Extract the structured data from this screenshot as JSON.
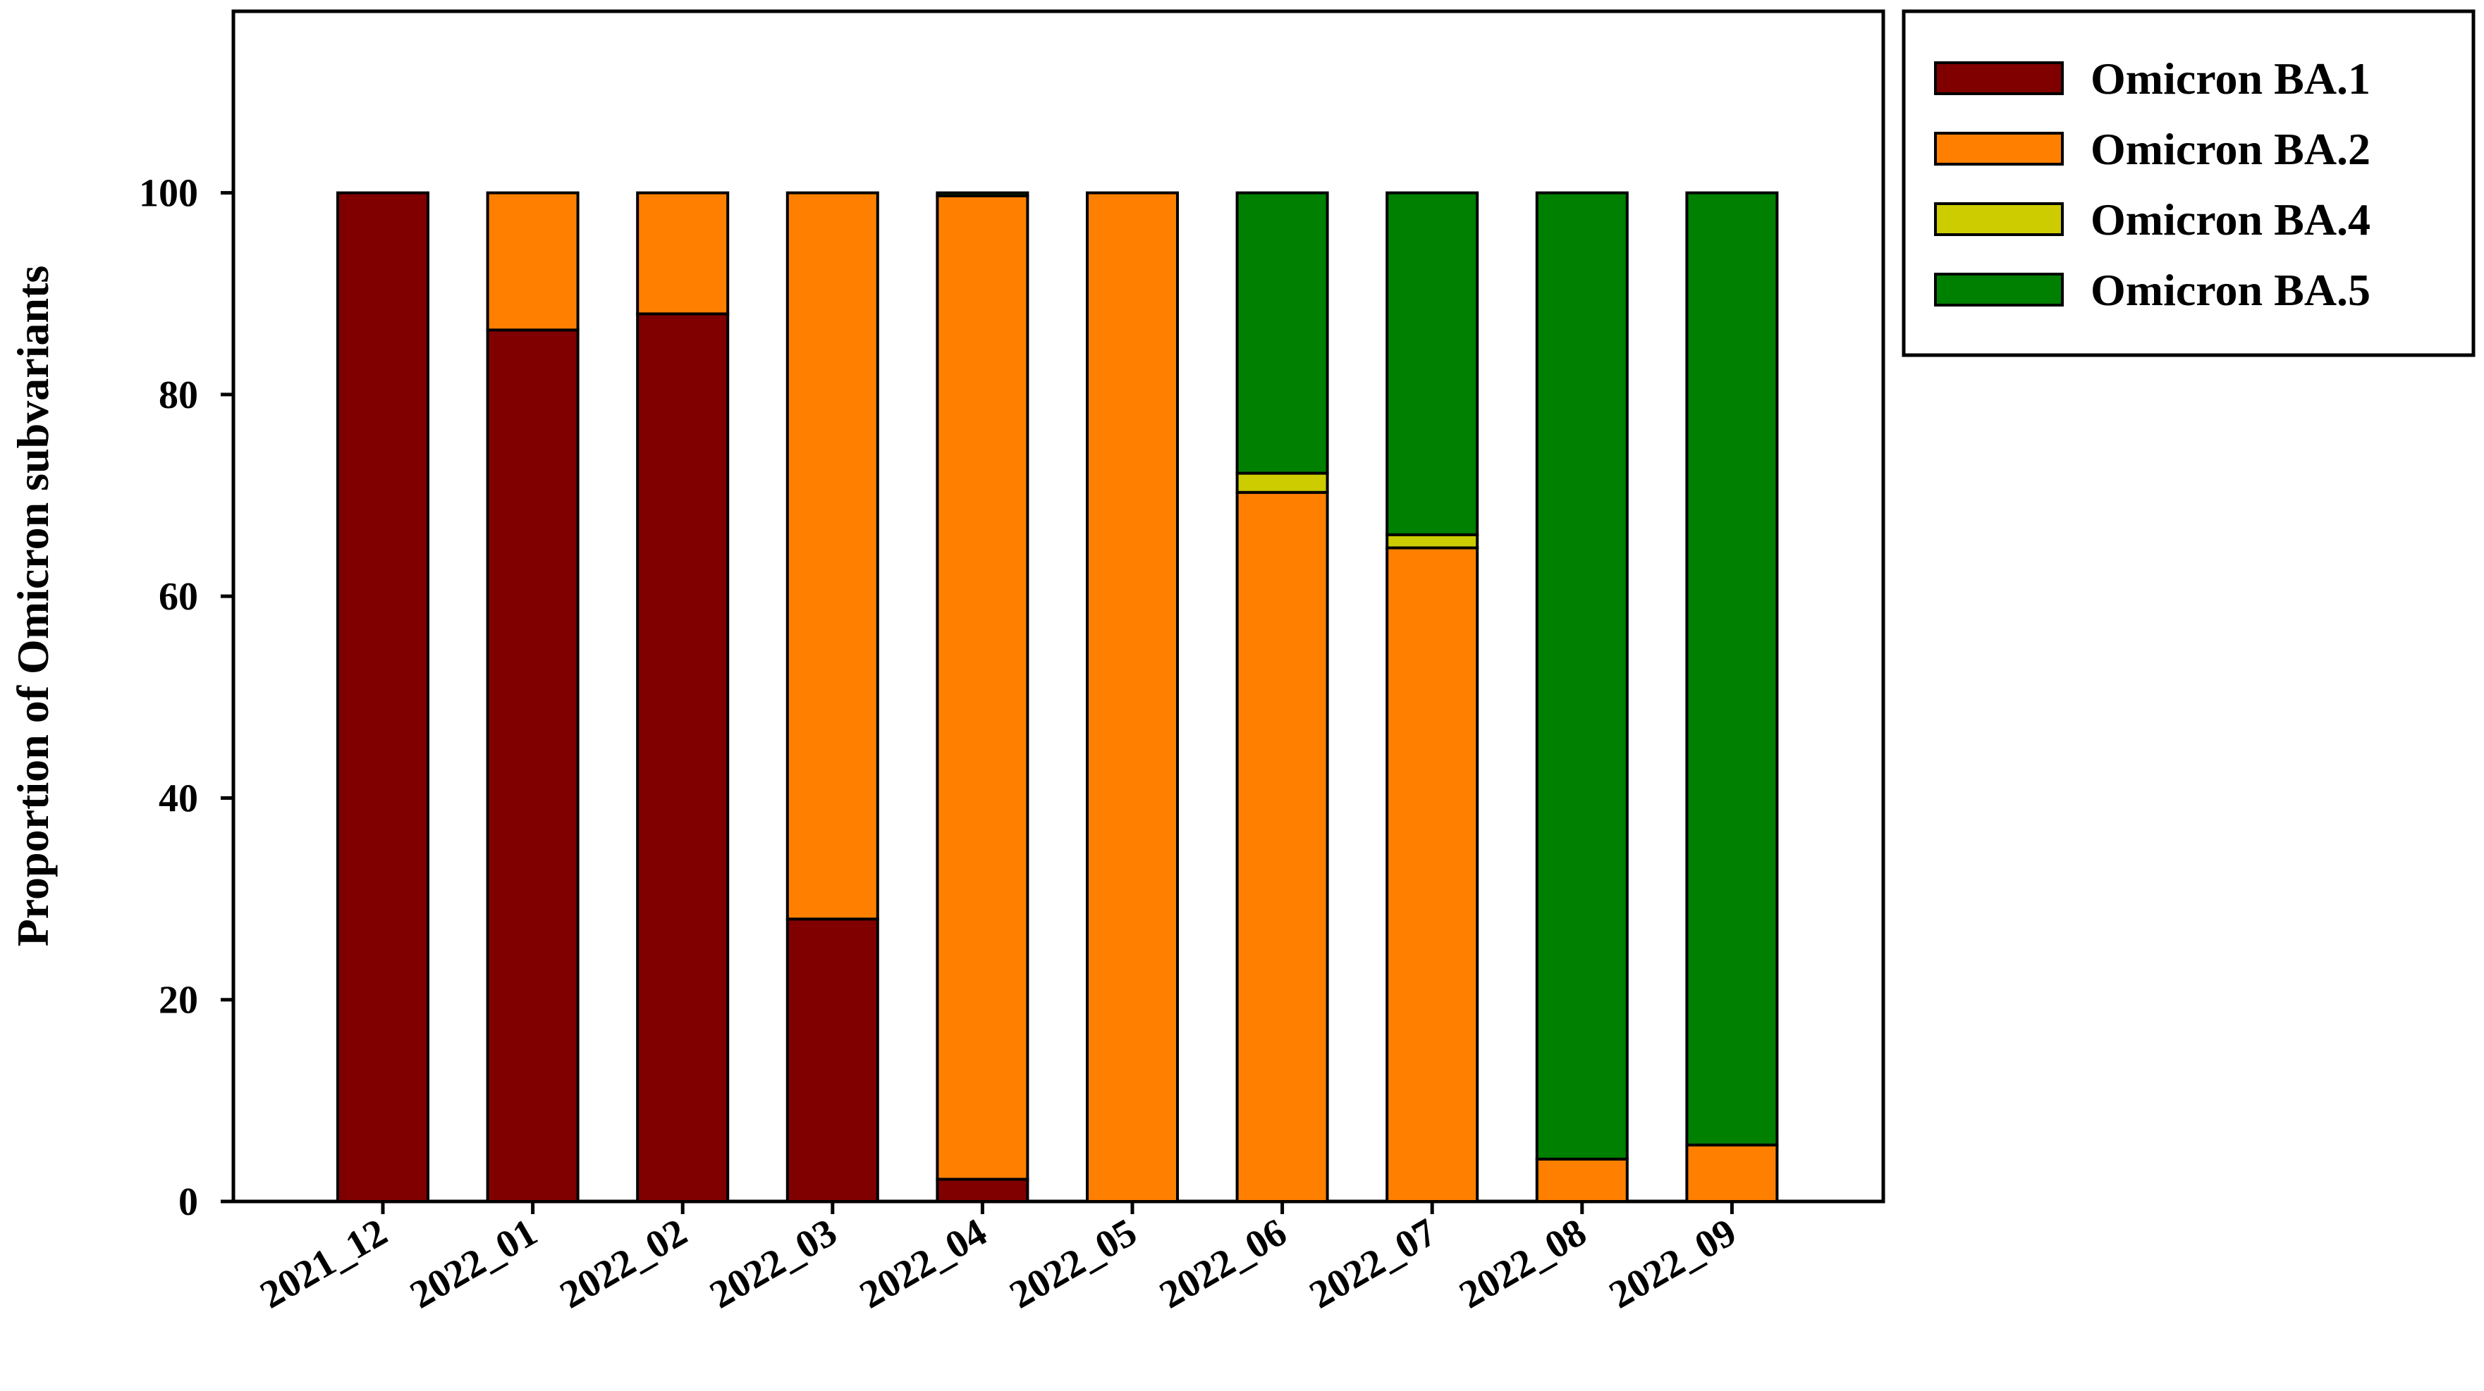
{
  "chart_data": {
    "type": "bar",
    "stacked": true,
    "title": "",
    "xlabel": "",
    "ylabel": "Proportion of Omicron subvariants",
    "ylim": [
      0,
      118
    ],
    "yticks": [
      0,
      20,
      40,
      60,
      80,
      100
    ],
    "grid": false,
    "legend_position": "outside-top-right",
    "categories": [
      "2021_12",
      "2022_01",
      "2022_02",
      "2022_03",
      "2022_04",
      "2022_05",
      "2022_06",
      "2022_07",
      "2022_08",
      "2022_09"
    ],
    "series": [
      {
        "name": "Omicron BA.1",
        "color": "#800000",
        "values": [
          100,
          86.4,
          88.0,
          28.0,
          2.2,
          0,
          0,
          0,
          0,
          0
        ]
      },
      {
        "name": "Omicron BA.2",
        "color": "#ff8000",
        "values": [
          0,
          13.6,
          12.0,
          72.0,
          97.5,
          100,
          70.3,
          64.8,
          4.2,
          5.6
        ]
      },
      {
        "name": "Omicron BA.4",
        "color": "#cccc00",
        "values": [
          0,
          0,
          0,
          0,
          0,
          0,
          1.9,
          1.3,
          0,
          0
        ]
      },
      {
        "name": "Omicron BA.5",
        "color": "#008000",
        "values": [
          0,
          0,
          0,
          0,
          0.3,
          0,
          27.8,
          33.9,
          95.8,
          94.4
        ]
      }
    ]
  }
}
